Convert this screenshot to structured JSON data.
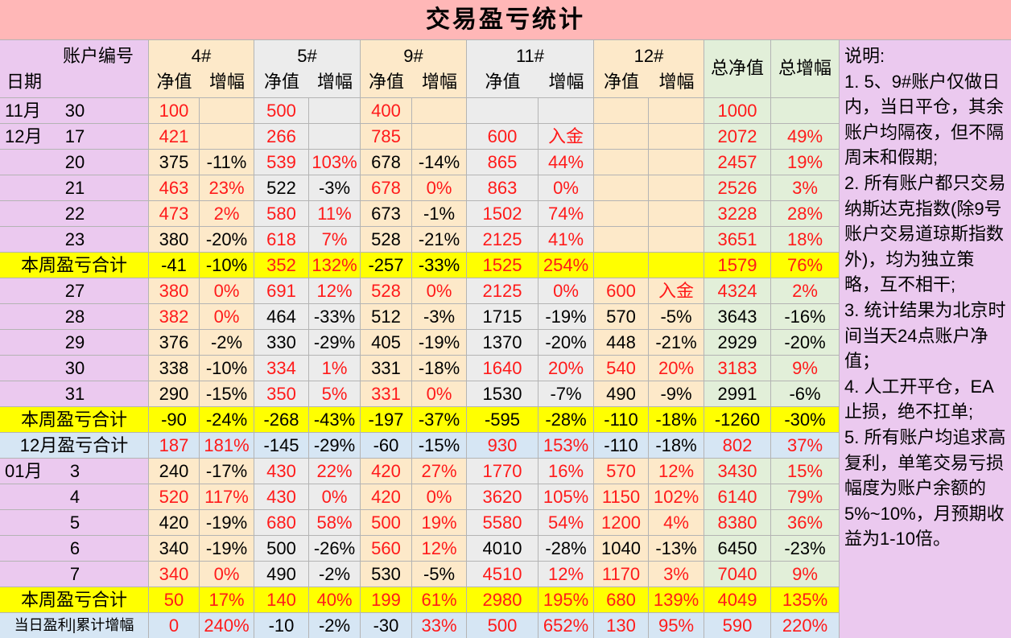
{
  "title": "交易盈亏统计",
  "header": {
    "account_label": "账户编号",
    "date_label": "日期",
    "accounts": [
      "4#",
      "5#",
      "9#",
      "11#",
      "12#"
    ],
    "net": "净值",
    "change": "增幅",
    "total_net": "总净值",
    "total_change": "总增幅"
  },
  "rows": [
    {
      "month": "11月",
      "day": "30",
      "cells": [
        "100",
        null,
        "500",
        null,
        "400",
        null,
        null,
        null,
        null,
        null,
        "1000",
        null
      ]
    },
    {
      "month": "12月",
      "day": "17",
      "cells": [
        "421",
        null,
        "266",
        null,
        "785",
        null,
        "600",
        "入金",
        null,
        null,
        "2072",
        "49%"
      ]
    },
    {
      "day": "20",
      "cells": [
        "375",
        "-11%",
        "539",
        "103%",
        "678",
        "-14%",
        "865",
        "44%",
        null,
        null,
        "2457",
        "19%"
      ]
    },
    {
      "day": "21",
      "cells": [
        "463",
        "23%",
        "522",
        "-3%",
        "678",
        "0%",
        "863",
        "0%",
        null,
        null,
        "2526",
        "3%"
      ]
    },
    {
      "day": "22",
      "cells": [
        "473",
        "2%",
        "580",
        "11%",
        "673",
        "-1%",
        "1502",
        "74%",
        null,
        null,
        "3228",
        "28%"
      ]
    },
    {
      "day": "23",
      "cells": [
        "380",
        "-20%",
        "618",
        "7%",
        "528",
        "-21%",
        "2125",
        "41%",
        null,
        null,
        "3651",
        "18%"
      ]
    },
    {
      "label": "本周盈亏合计",
      "background": "#ffff00",
      "cells": [
        "-41",
        "-10%",
        "352",
        "132%",
        "-257",
        "-33%",
        "1525",
        "254%",
        null,
        null,
        "1579",
        "76%"
      ]
    },
    {
      "day": "27",
      "cells": [
        "380",
        "0%",
        "691",
        "12%",
        "528",
        "0%",
        "2125",
        "0%",
        "600",
        "入金",
        "4324",
        "2%"
      ]
    },
    {
      "day": "28",
      "cells": [
        "382",
        "0%",
        "464",
        "-33%",
        "512",
        "-3%",
        "1715",
        "-19%",
        "570",
        "-5%",
        "3643",
        "-16%"
      ]
    },
    {
      "day": "29",
      "cells": [
        "376",
        "-2%",
        "330",
        "-29%",
        "405",
        "-19%",
        "1370",
        "-20%",
        "448",
        "-21%",
        "2929",
        "-20%"
      ]
    },
    {
      "day": "30",
      "cells": [
        "338",
        "-10%",
        "334",
        "1%",
        "331",
        "-18%",
        "1640",
        "20%",
        "540",
        "20%",
        "3183",
        "9%"
      ]
    },
    {
      "day": "31",
      "cells": [
        "290",
        "-15%",
        "350",
        "5%",
        "331",
        "0%",
        "1530",
        "-7%",
        "490",
        "-9%",
        "2991",
        "-6%"
      ]
    },
    {
      "label": "本周盈亏合计",
      "background": "#ffff00",
      "cells": [
        "-90",
        "-24%",
        "-268",
        "-43%",
        "-197",
        "-37%",
        "-595",
        "-28%",
        "-110",
        "-18%",
        "-1260",
        "-30%"
      ]
    },
    {
      "label": "12月盈亏合计",
      "background": "#d6e6f4",
      "cells": [
        "187",
        "181%",
        "-145",
        "-29%",
        "-60",
        "-15%",
        "930",
        "153%",
        "-110",
        "-18%",
        "802",
        "37%"
      ]
    },
    {
      "month": "01月",
      "day": "3",
      "cells": [
        "240",
        "-17%",
        "430",
        "22%",
        "420",
        "27%",
        "1770",
        "16%",
        "570",
        "12%",
        "3430",
        "15%"
      ]
    },
    {
      "day": "4",
      "cells": [
        "520",
        "117%",
        "430",
        "0%",
        "420",
        "0%",
        "3620",
        "105%",
        "1150",
        "102%",
        "6140",
        "79%"
      ]
    },
    {
      "day": "5",
      "cells": [
        "420",
        "-19%",
        "680",
        "58%",
        "500",
        "19%",
        "5580",
        "54%",
        "1200",
        "4%",
        "8380",
        "36%"
      ]
    },
    {
      "day": "6",
      "cells": [
        "340",
        "-19%",
        "500",
        "-26%",
        "560",
        "12%",
        "4010",
        "-28%",
        "1040",
        "-13%",
        "6450",
        "-23%"
      ]
    },
    {
      "day": "7",
      "cells": [
        "340",
        "0%",
        "490",
        "-2%",
        "530",
        "-5%",
        "4510",
        "12%",
        "1170",
        "3%",
        "7040",
        "9%"
      ]
    },
    {
      "label": "本周盈亏合计",
      "background": "#ffff00",
      "cells": [
        "50",
        "17%",
        "140",
        "40%",
        "199",
        "61%",
        "2980",
        "195%",
        "680",
        "139%",
        "4049",
        "135%"
      ]
    },
    {
      "label": "当日盈利|累计增幅",
      "background": "#d6e6f4",
      "cells": [
        "0",
        "240%",
        "-10",
        "-2%",
        "-30",
        "33%",
        "500",
        "652%",
        "130",
        "95%",
        "590",
        "220%"
      ]
    }
  ],
  "notes": [
    "说明:",
    "1. 5、9#账户仅做日内，当日平仓，其余账户均隔夜，但不隔周末和假期;",
    "2. 所有账户都只交易纳斯达克指数(除9号账户交易道琼斯指数外)，均为独立策略，互不相干;",
    "3. 统计结果为北京时间当天24点账户净值；",
    "4. 人工开平仓，EA止损，绝不扛单;",
    "5. 所有账户均追求高复利，单笔交易亏损幅度为账户余额的5%~10%，月预期收益为1-10倍。"
  ]
}
